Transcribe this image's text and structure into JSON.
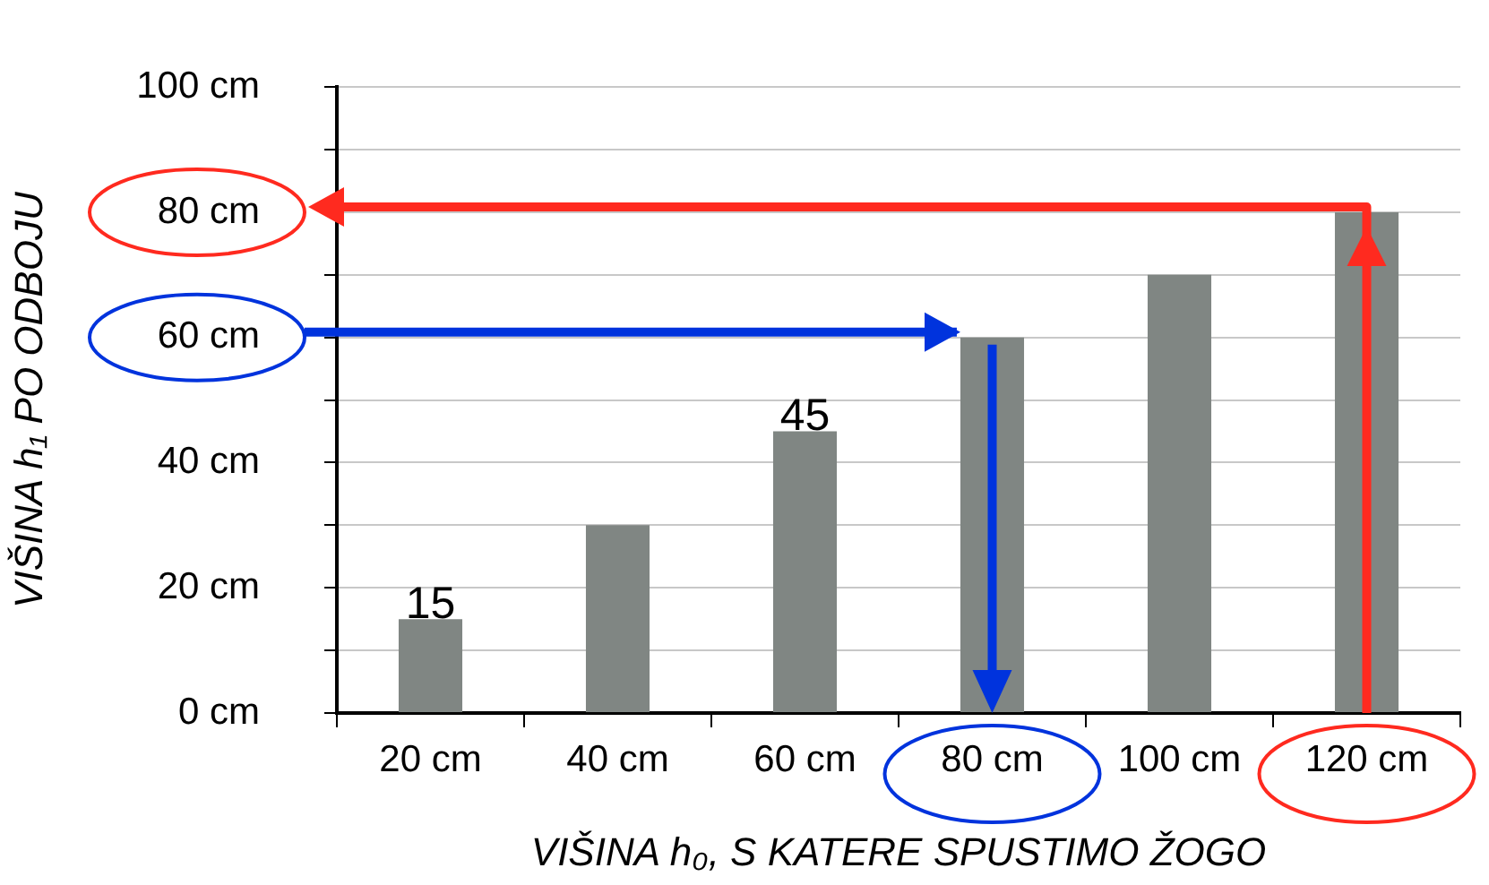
{
  "chart_data": {
    "type": "bar",
    "xlabel": "VIŠINA h₀, S KATERE SPUSTIMO ŽOGO",
    "ylabel": "VIŠINA h₁ PO ODBOJU",
    "categories": [
      "20 cm",
      "40 cm",
      "60 cm",
      "80 cm",
      "100 cm",
      "120 cm"
    ],
    "values": [
      15,
      30,
      45,
      60,
      70,
      80
    ],
    "color": "#808683",
    "value_labels": [
      "15",
      null,
      "45",
      null,
      null,
      null
    ],
    "ylim": [
      0,
      100
    ],
    "yticks": [
      {
        "value": 0,
        "label": "0 cm"
      },
      {
        "value": 10,
        "label": null
      },
      {
        "value": 20,
        "label": "20 cm"
      },
      {
        "value": 30,
        "label": null
      },
      {
        "value": 40,
        "label": "40 cm"
      },
      {
        "value": 50,
        "label": null
      },
      {
        "value": 60,
        "label": "60 cm"
      },
      {
        "value": 70,
        "label": null
      },
      {
        "value": 80,
        "label": "80 cm"
      },
      {
        "value": 90,
        "label": null
      },
      {
        "value": 100,
        "label": "100 cm"
      }
    ],
    "grid": "y",
    "legend": false
  }
}
